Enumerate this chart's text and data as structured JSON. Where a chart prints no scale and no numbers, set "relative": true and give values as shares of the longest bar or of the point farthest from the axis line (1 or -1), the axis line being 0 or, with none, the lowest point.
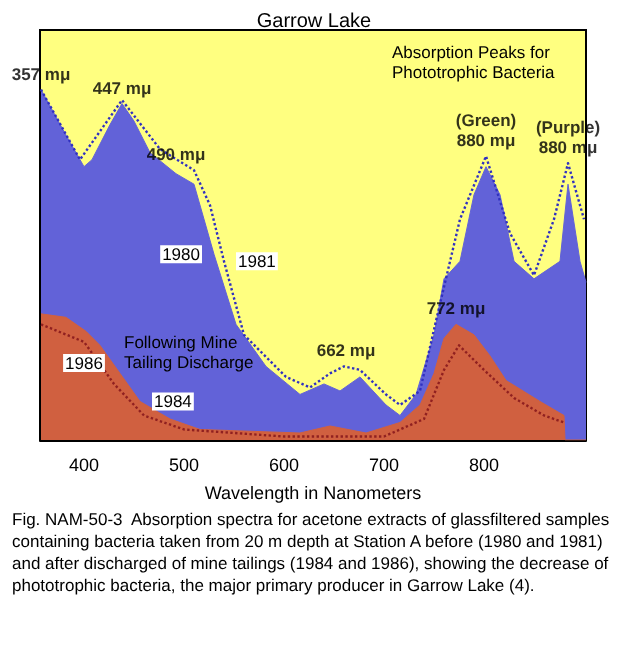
{
  "chart_data": {
    "type": "area",
    "title": "Garrow Lake",
    "xlabel": "Wavelength in Nanometers",
    "relative": true,
    "xlim": [
      356,
      902
    ],
    "xticks": [
      400,
      500,
      600,
      700,
      800
    ],
    "grid": false,
    "legend": false,
    "series": [
      {
        "name": "1980",
        "type": "area",
        "color": "#6262d8",
        "x": [
          357,
          382,
          400,
          408,
          426,
          438,
          450,
          466,
          492,
          510,
          530,
          552,
          582,
          616,
          640,
          656,
          676,
          702,
          716,
          732,
          750,
          760,
          776,
          790,
          802,
          816,
          830,
          850,
          876,
          884,
          896,
          902
        ],
        "values": [
          1.0,
          0.87,
          0.78,
          0.8,
          0.9,
          0.96,
          0.91,
          0.82,
          0.76,
          0.73,
          0.53,
          0.33,
          0.21,
          0.13,
          0.16,
          0.14,
          0.18,
          0.1,
          0.07,
          0.13,
          0.3,
          0.46,
          0.51,
          0.7,
          0.78,
          0.7,
          0.51,
          0.46,
          0.51,
          0.73,
          0.51,
          0.45
        ]
      },
      {
        "name": "1981",
        "type": "line",
        "line_style": "dotted",
        "color": "#3030c0",
        "x": [
          357,
          396,
          438,
          476,
          510,
          526,
          540,
          560,
          602,
          626,
          646,
          660,
          676,
          702,
          716,
          736,
          752,
          776,
          802,
          826,
          850,
          870,
          884,
          900
        ],
        "values": [
          1.0,
          0.8,
          0.97,
          0.83,
          0.77,
          0.67,
          0.51,
          0.3,
          0.18,
          0.15,
          0.19,
          0.21,
          0.2,
          0.13,
          0.1,
          0.14,
          0.34,
          0.63,
          0.81,
          0.59,
          0.47,
          0.63,
          0.79,
          0.63
        ]
      },
      {
        "name": "1984",
        "type": "area",
        "color": "#d06040",
        "x": [
          357,
          382,
          402,
          416,
          436,
          456,
          486,
          516,
          616,
          646,
          682,
          716,
          736,
          750,
          760,
          772,
          790,
          806,
          822,
          856,
          880,
          881,
          902
        ],
        "values": [
          0.36,
          0.35,
          0.31,
          0.27,
          0.19,
          0.11,
          0.06,
          0.03,
          0.02,
          0.04,
          0.02,
          0.05,
          0.1,
          0.19,
          0.29,
          0.33,
          0.3,
          0.24,
          0.17,
          0.11,
          0.07,
          0,
          0
        ]
      },
      {
        "name": "1986",
        "type": "line",
        "line_style": "dotted",
        "color": "#902020",
        "x": [
          357,
          400,
          430,
          460,
          500,
          600,
          700,
          740,
          760,
          775,
          800,
          830,
          860,
          880
        ],
        "values": [
          0.33,
          0.28,
          0.16,
          0.07,
          0.03,
          0.01,
          0.01,
          0.06,
          0.2,
          0.27,
          0.2,
          0.12,
          0.07,
          0.05
        ]
      }
    ],
    "annotations": [
      {
        "text": "357 mμ",
        "x": 357,
        "y": 1.0
      },
      {
        "text": "447 mμ",
        "x": 438,
        "y": 0.96
      },
      {
        "text": "490 mμ",
        "x": 492,
        "y": 0.77
      },
      {
        "text": "662 mμ",
        "x": 662,
        "y": 0.21
      },
      {
        "text": "772 mμ",
        "x": 772,
        "y": 0.33
      },
      {
        "text": "(Green)\n880 mμ",
        "x": 802,
        "y": 0.81
      },
      {
        "text": "(Purple)\n880 mμ",
        "x": 884,
        "y": 0.79
      },
      "Absorption Peaks for\nPhototrophic Bacteria",
      "Following Mine\nTailing Discharge",
      "Fig. NAM-50-3  Absorption spectra for acetone extracts of glassfiltered samples containing bacteria taken from 20 m depth at Station A before (1980 and 1981) and after discharged of mine tailings (1984 and 1986), showing the decrease of phototrophic bacteria, the major primary producer in Garrow Lake (4)."
    ]
  }
}
